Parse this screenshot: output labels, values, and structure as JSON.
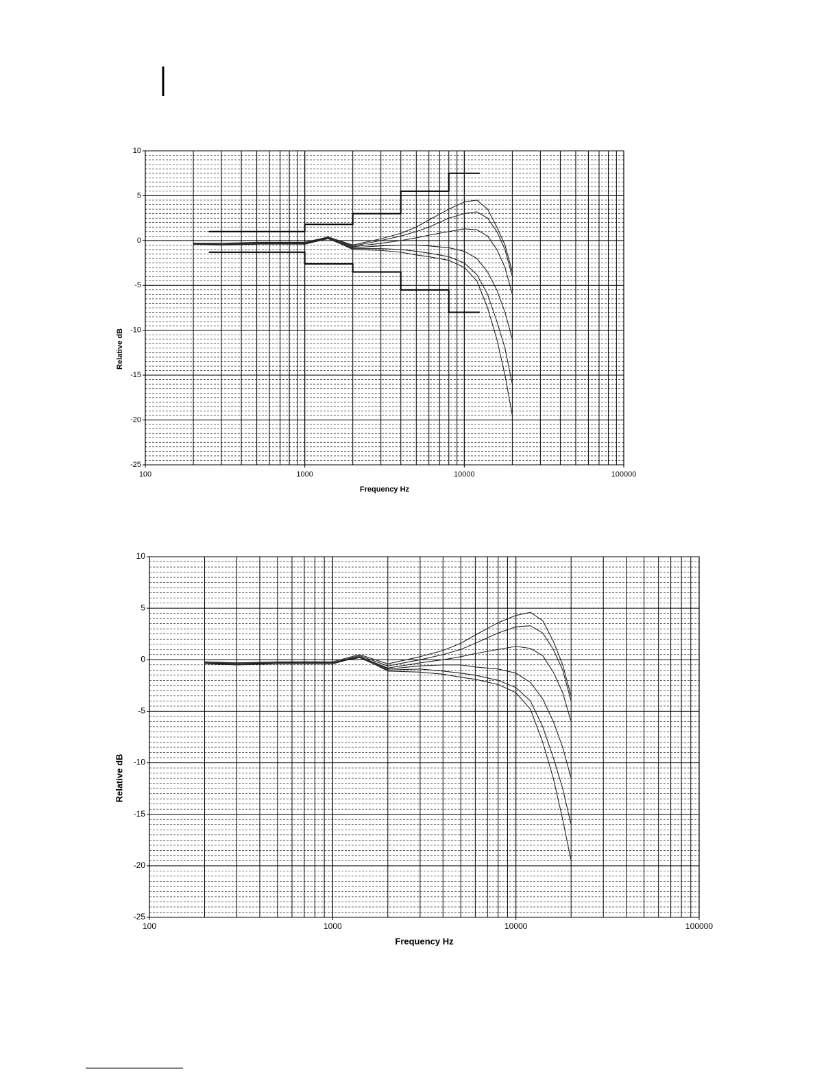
{
  "chart_data": [
    {
      "type": "line",
      "xlabel": "Frequency Hz",
      "ylabel": "Relative dB",
      "xscale": "log",
      "xlim": [
        100,
        100000
      ],
      "ylim": [
        -25,
        10
      ],
      "xticks": [
        100,
        1000,
        10000,
        100000
      ],
      "yticks": [
        -25,
        -20,
        -15,
        -10,
        -5,
        0,
        5,
        10
      ],
      "grid": true,
      "minor_grid": true,
      "x": [
        200,
        300,
        500,
        700,
        1000,
        1400,
        2000,
        3000,
        4000,
        5000,
        6000,
        8000,
        10000,
        12000,
        14000,
        16000,
        18000,
        20000
      ],
      "series": [
        {
          "color": "#222222",
          "values": [
            -0.3,
            -0.3,
            -0.2,
            -0.2,
            -0.2,
            0.4,
            -0.5,
            0.2,
            0.8,
            1.5,
            2.3,
            3.5,
            4.3,
            4.5,
            3.5,
            1.5,
            -0.5,
            -3.5
          ]
        },
        {
          "color": "#222222",
          "values": [
            -0.3,
            -0.4,
            -0.3,
            -0.2,
            -0.3,
            0.4,
            -0.6,
            0,
            0.5,
            1,
            1.5,
            2.5,
            3,
            3.2,
            2.5,
            1,
            -1,
            -4
          ]
        },
        {
          "color": "#222222",
          "values": [
            -0.4,
            -0.4,
            -0.3,
            -0.3,
            -0.3,
            0.3,
            -0.7,
            -0.3,
            0,
            0.3,
            0.6,
            1,
            1.3,
            1.2,
            0.5,
            -1,
            -3,
            -6
          ]
        },
        {
          "color": "#222222",
          "values": [
            -0.4,
            -0.5,
            -0.4,
            -0.3,
            -0.4,
            0.3,
            -0.8,
            -0.6,
            -0.5,
            -0.5,
            -0.6,
            -0.8,
            -1.2,
            -2,
            -3.5,
            -5.5,
            -8,
            -11
          ]
        },
        {
          "color": "#222222",
          "values": [
            -0.3,
            -0.4,
            -0.4,
            -0.3,
            -0.4,
            0.2,
            -0.9,
            -0.9,
            -1,
            -1.2,
            -1.4,
            -1.8,
            -2.5,
            -3.8,
            -6,
            -9,
            -12,
            -16
          ]
        },
        {
          "color": "#222222",
          "values": [
            -0.4,
            -0.5,
            -0.4,
            -0.4,
            -0.4,
            0.3,
            -1,
            -1.1,
            -1.3,
            -1.6,
            -1.8,
            -2.2,
            -3,
            -4.5,
            -7.5,
            -11,
            -15,
            -19.5
          ]
        },
        {
          "color": "#000000",
          "linewidth": 2,
          "x": [
            250,
            1000,
            1000,
            2000,
            2000,
            4000,
            4000,
            8000,
            8000,
            12500
          ],
          "values": [
            1,
            1,
            1.8,
            1.8,
            3,
            3,
            5.5,
            5.5,
            7.5,
            7.5
          ]
        },
        {
          "color": "#000000",
          "linewidth": 2,
          "x": [
            250,
            1000,
            1000,
            2000,
            2000,
            4000,
            4000,
            8000,
            8000,
            12500
          ],
          "values": [
            -1.3,
            -1.3,
            -2.6,
            -2.6,
            -3.5,
            -3.5,
            -5.5,
            -5.5,
            -8,
            -8
          ]
        }
      ]
    },
    {
      "type": "line",
      "xlabel": "Frequency Hz",
      "ylabel": "Relative dB",
      "xscale": "log",
      "xlim": [
        100,
        100000
      ],
      "ylim": [
        -25,
        10
      ],
      "xticks": [
        100,
        1000,
        10000,
        100000
      ],
      "yticks": [
        -25,
        -20,
        -15,
        -10,
        -5,
        0,
        5,
        10
      ],
      "grid": true,
      "minor_grid": true,
      "x": [
        200,
        300,
        500,
        700,
        1000,
        1400,
        2000,
        3000,
        4000,
        5000,
        6000,
        8000,
        10000,
        12000,
        14000,
        16000,
        18000,
        20000
      ],
      "series": [
        {
          "color": "#222222",
          "values": [
            -0.2,
            -0.3,
            -0.2,
            -0.2,
            -0.2,
            0.5,
            -0.4,
            0.3,
            0.9,
            1.6,
            2.4,
            3.6,
            4.3,
            4.6,
            3.8,
            1.8,
            -0.5,
            -3.5
          ]
        },
        {
          "color": "#222222",
          "values": [
            -0.3,
            -0.3,
            -0.3,
            -0.2,
            -0.3,
            0.4,
            -0.6,
            0,
            0.5,
            1,
            1.6,
            2.6,
            3.2,
            3.3,
            2.6,
            1,
            -1,
            -4
          ]
        },
        {
          "color": "#222222",
          "values": [
            -0.3,
            -0.4,
            -0.3,
            -0.3,
            -0.3,
            0.3,
            -0.8,
            -0.3,
            0,
            0.3,
            0.6,
            1,
            1.3,
            1.1,
            0.4,
            -1.2,
            -3.2,
            -6
          ]
        },
        {
          "color": "#222222",
          "values": [
            -0.3,
            -0.5,
            -0.3,
            -0.3,
            -0.3,
            0.3,
            -0.9,
            -0.6,
            -0.5,
            -0.5,
            -0.7,
            -0.9,
            -1.3,
            -2.2,
            -3.8,
            -6,
            -8.5,
            -11.5
          ]
        },
        {
          "color": "#222222",
          "values": [
            -0.3,
            -0.4,
            -0.3,
            -0.3,
            -0.3,
            0.2,
            -1,
            -0.9,
            -1.1,
            -1.3,
            -1.5,
            -2,
            -2.7,
            -4,
            -6.5,
            -9.5,
            -12.5,
            -16
          ]
        },
        {
          "color": "#222222",
          "values": [
            -0.4,
            -0.5,
            -0.4,
            -0.4,
            -0.4,
            0.3,
            -1.1,
            -1.2,
            -1.4,
            -1.7,
            -1.9,
            -2.4,
            -3.2,
            -4.8,
            -8,
            -11.5,
            -15.5,
            -19.5
          ]
        }
      ]
    }
  ]
}
